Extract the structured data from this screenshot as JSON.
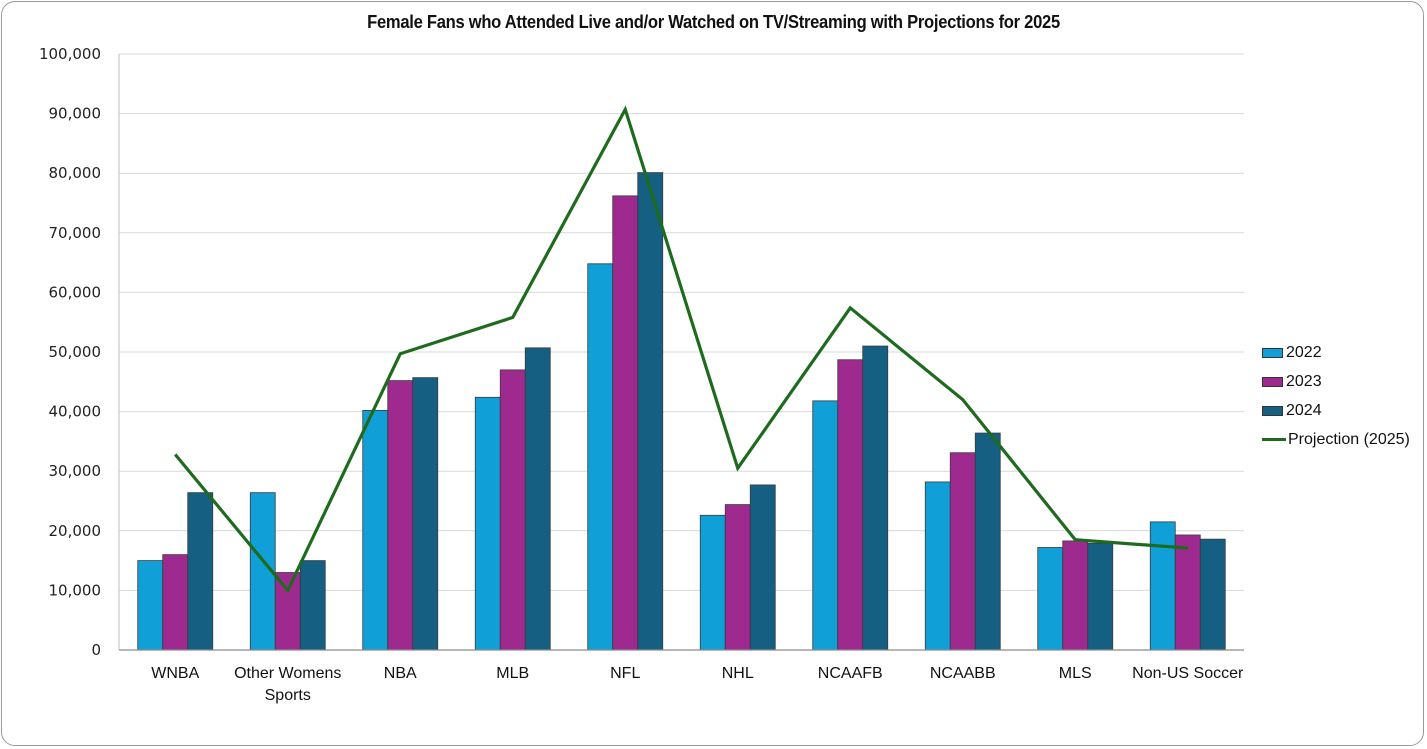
{
  "chart_data": {
    "type": "bar",
    "title": "Female Fans who Attended Live and/or Watched on TV/Streaming with Projections for 2025",
    "xlabel": "",
    "ylabel": "",
    "ylim": [
      0,
      100000
    ],
    "yticks": [
      0,
      10000,
      20000,
      30000,
      40000,
      50000,
      60000,
      70000,
      80000,
      90000,
      100000
    ],
    "ytick_labels": [
      "0",
      "10,000",
      "20,000",
      "30,000",
      "40,000",
      "50,000",
      "60,000",
      "70,000",
      "80,000",
      "90,000",
      "100,000"
    ],
    "grid": true,
    "legend_position": "right",
    "categories": [
      [
        "WNBA"
      ],
      [
        "Other Womens",
        "Sports"
      ],
      [
        "NBA"
      ],
      [
        "MLB"
      ],
      [
        "NFL"
      ],
      [
        "NHL"
      ],
      [
        "NCAAFB"
      ],
      [
        "NCAABB"
      ],
      [
        "MLS"
      ],
      [
        "Non-US Soccer"
      ]
    ],
    "series": [
      {
        "name": "2022",
        "type": "bar",
        "color": "#109fd6",
        "values": [
          15000,
          26400,
          40200,
          42400,
          64800,
          22600,
          41800,
          28200,
          17200,
          21500
        ]
      },
      {
        "name": "2023",
        "type": "bar",
        "color": "#9e2a8f",
        "values": [
          16000,
          13000,
          45200,
          47000,
          76200,
          24400,
          48700,
          33100,
          18300,
          19300
        ]
      },
      {
        "name": "2024",
        "type": "bar",
        "color": "#155f82",
        "values": [
          26400,
          15000,
          45700,
          50700,
          80100,
          27700,
          51000,
          36400,
          17900,
          18600
        ]
      },
      {
        "name": "Projection (2025)",
        "type": "line",
        "color": "#1e6b1e",
        "values": [
          32800,
          10000,
          49700,
          55800,
          90700,
          30500,
          57400,
          42000,
          18500,
          17100
        ]
      }
    ]
  }
}
